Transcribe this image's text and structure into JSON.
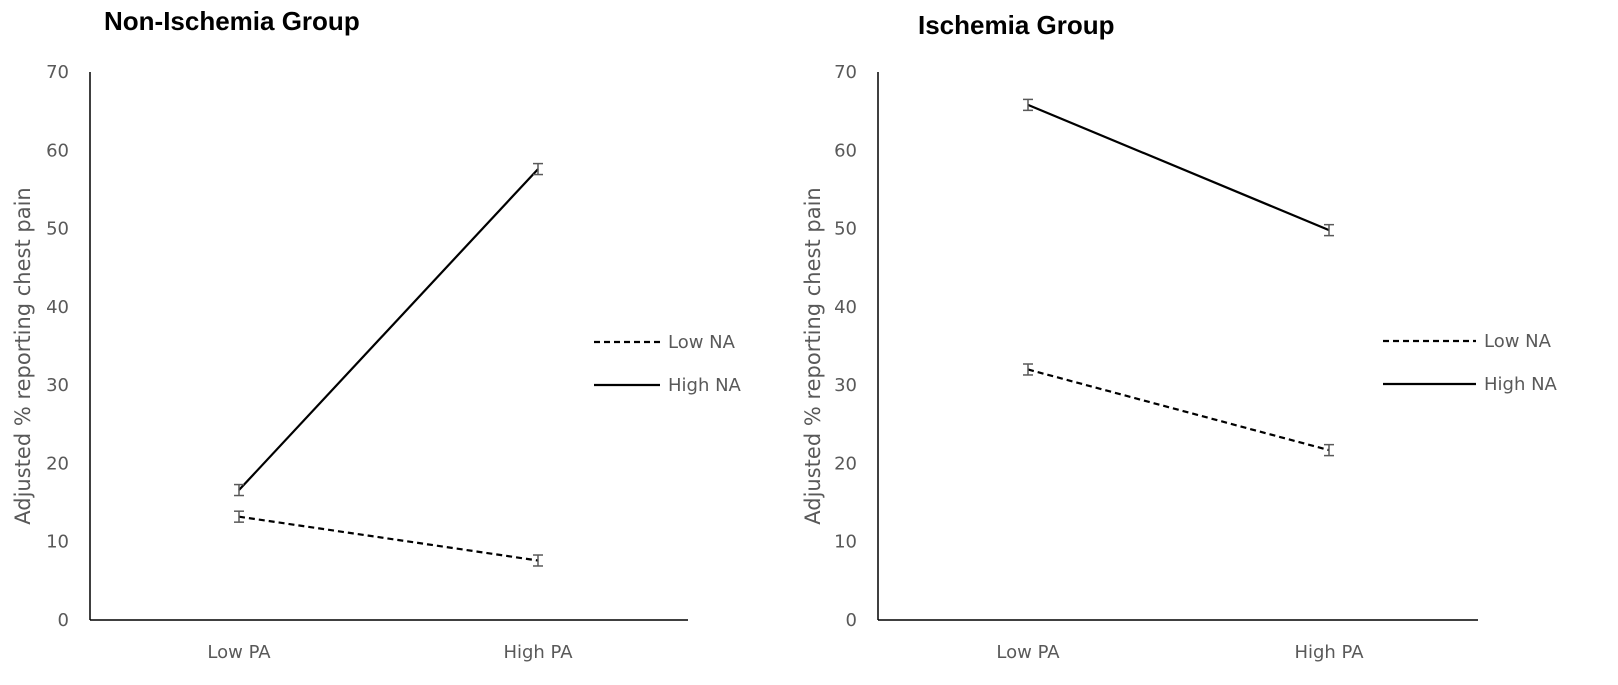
{
  "chart_data": [
    {
      "type": "line",
      "title": "Non-Ischemia Group",
      "ylabel": "Adjusted % reporting chest pain",
      "xlabel": "",
      "categories": [
        "Low PA",
        "High PA"
      ],
      "ylim": [
        0,
        70
      ],
      "yticks": [
        0,
        10,
        20,
        30,
        40,
        50,
        60,
        70
      ],
      "grid": false,
      "legend_position": "right",
      "series": [
        {
          "name": "Low NA",
          "style": "dashed",
          "color": "#000000",
          "values": [
            13.2,
            7.6
          ],
          "error": [
            0.7,
            0.7
          ]
        },
        {
          "name": "High NA",
          "style": "solid",
          "color": "#000000",
          "values": [
            16.6,
            57.6
          ],
          "error": [
            0.7,
            0.7
          ]
        }
      ]
    },
    {
      "type": "line",
      "title": "Ischemia Group",
      "ylabel": "Adjusted % reporting chest pain",
      "xlabel": "",
      "categories": [
        "Low PA",
        "High PA"
      ],
      "ylim": [
        0,
        70
      ],
      "yticks": [
        0,
        10,
        20,
        30,
        40,
        50,
        60,
        70
      ],
      "grid": false,
      "legend_position": "right",
      "series": [
        {
          "name": "Low NA",
          "style": "dashed",
          "color": "#000000",
          "values": [
            32.0,
            21.7
          ],
          "error": [
            0.7,
            0.7
          ]
        },
        {
          "name": "High NA",
          "style": "solid",
          "color": "#000000",
          "values": [
            65.8,
            49.8
          ],
          "error": [
            0.7,
            0.7
          ]
        }
      ]
    }
  ]
}
